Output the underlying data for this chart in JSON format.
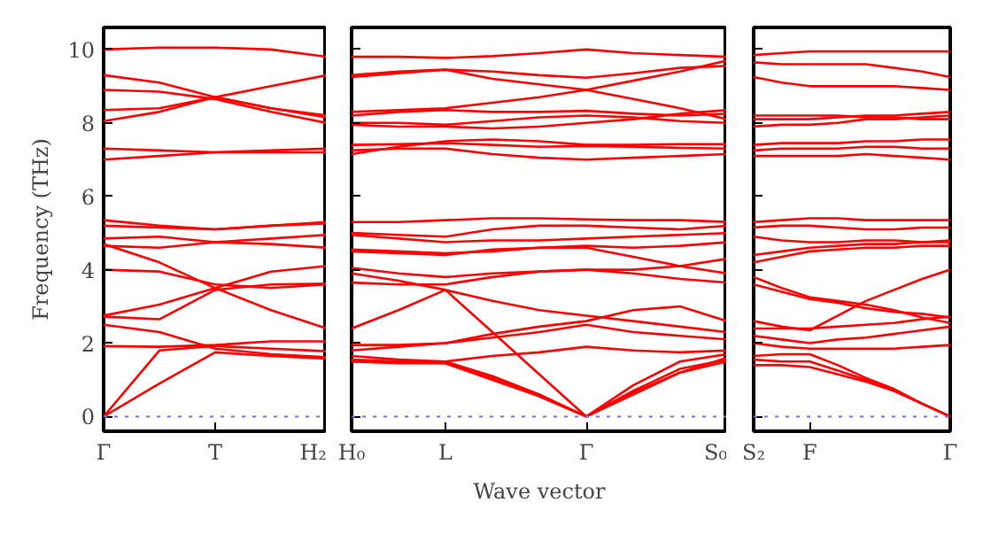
{
  "chart_data": [
    {
      "type": "line",
      "ylabel": "Frequency (THz)",
      "categories": [
        "Γ",
        null,
        "T",
        null,
        "H₂"
      ],
      "ylim": [
        -0.4,
        10.6
      ],
      "yticks": [
        0,
        2,
        4,
        6,
        8,
        10
      ],
      "grid": false,
      "line_style": "solid",
      "ref_lines": [
        {
          "axis": "y",
          "value": 0,
          "label": null,
          "color": "#7070ff",
          "line_style": "dotted"
        }
      ],
      "series": [
        {
          "color": "#ff0000",
          "values": [
            0,
            0.9,
            1.75,
            1.65,
            1.58
          ]
        },
        {
          "color": "#ff0000",
          "values": [
            0,
            1.8,
            1.92,
            1.85,
            1.78
          ]
        },
        {
          "color": "#ff0000",
          "values": [
            1.92,
            1.9,
            1.95,
            2.05,
            2.05
          ]
        },
        {
          "color": "#ff0000",
          "values": [
            2.5,
            2.3,
            1.85,
            1.7,
            1.62
          ]
        },
        {
          "color": "#ff0000",
          "values": [
            2.72,
            2.65,
            3.45,
            3.6,
            3.62
          ]
        },
        {
          "color": "#ff0000",
          "values": [
            2.75,
            3.05,
            3.5,
            3.95,
            4.1
          ]
        },
        {
          "color": "#ff0000",
          "values": [
            4.7,
            4.2,
            3.5,
            2.9,
            2.4
          ]
        },
        {
          "color": "#ff0000",
          "values": [
            4.0,
            3.95,
            3.6,
            3.5,
            3.6
          ]
        },
        {
          "color": "#ff0000",
          "values": [
            4.65,
            4.6,
            4.75,
            4.7,
            4.6
          ]
        },
        {
          "color": "#ff0000",
          "values": [
            4.85,
            4.9,
            4.75,
            4.85,
            4.95
          ]
        },
        {
          "color": "#ff0000",
          "values": [
            5.2,
            5.15,
            5.1,
            5.2,
            5.3
          ]
        },
        {
          "color": "#ff0000",
          "values": [
            5.35,
            5.2,
            5.1,
            5.2,
            5.26
          ]
        },
        {
          "color": "#ff0000",
          "values": [
            7.0,
            7.1,
            7.2,
            7.2,
            7.2
          ]
        },
        {
          "color": "#ff0000",
          "values": [
            7.3,
            7.25,
            7.2,
            7.25,
            7.3
          ]
        },
        {
          "color": "#ff0000",
          "values": [
            8.05,
            8.3,
            8.7,
            9.0,
            9.3
          ]
        },
        {
          "color": "#ff0000",
          "values": [
            8.35,
            8.4,
            8.7,
            8.4,
            8.2
          ]
        },
        {
          "color": "#ff0000",
          "values": [
            8.9,
            8.85,
            8.65,
            8.3,
            8.0
          ]
        },
        {
          "color": "#ff0000",
          "values": [
            9.3,
            9.1,
            8.7,
            8.4,
            8.15
          ]
        },
        {
          "color": "#ff0000",
          "values": [
            10.0,
            10.05,
            10.05,
            10.0,
            9.8
          ]
        }
      ]
    },
    {
      "type": "line",
      "xlabel": "Wave vector",
      "categories": [
        "H₀",
        null,
        "L",
        null,
        null,
        "Γ",
        null,
        null,
        "S₀"
      ],
      "ylim": [
        -0.4,
        10.6
      ],
      "yticks": [
        {
          "value": 0,
          "label": null
        },
        {
          "value": 2,
          "label": null
        },
        {
          "value": 4,
          "label": null
        },
        {
          "value": 6,
          "label": null
        },
        {
          "value": 8,
          "label": null
        },
        {
          "value": 10,
          "label": null
        }
      ],
      "tick_labels": "x",
      "grid": false,
      "line_style": "solid",
      "ref_lines": [
        {
          "axis": "y",
          "value": 0,
          "label": null,
          "color": "#7070ff",
          "line_style": "dotted"
        }
      ],
      "series": [
        {
          "color": "#ff0000",
          "values": [
            9.8,
            9.8,
            9.77,
            9.82,
            9.9,
            10.0,
            9.9,
            9.85,
            9.8
          ]
        },
        {
          "color": "#ff0000",
          "values": [
            9.3,
            9.4,
            9.45,
            9.4,
            9.3,
            9.23,
            9.35,
            9.5,
            9.55
          ]
        },
        {
          "color": "#ff0000",
          "values": [
            9.25,
            9.35,
            9.45,
            9.2,
            9.05,
            8.9,
            9.15,
            9.4,
            9.7
          ]
        },
        {
          "color": "#ff0000",
          "values": [
            8.3,
            8.35,
            8.4,
            8.55,
            8.7,
            8.9,
            8.65,
            8.4,
            8.1
          ]
        },
        {
          "color": "#ff0000",
          "values": [
            8.2,
            8.3,
            8.35,
            8.3,
            8.3,
            8.33,
            8.25,
            8.2,
            8.25
          ]
        },
        {
          "color": "#ff0000",
          "values": [
            8.0,
            8.0,
            7.95,
            8.05,
            8.15,
            8.2,
            8.15,
            8.05,
            8.0
          ]
        },
        {
          "color": "#ff0000",
          "values": [
            7.95,
            7.9,
            7.9,
            7.85,
            7.9,
            8.0,
            8.1,
            8.25,
            8.35
          ]
        },
        {
          "color": "#ff0000",
          "values": [
            7.4,
            7.42,
            7.45,
            7.4,
            7.35,
            7.37,
            7.35,
            7.32,
            7.3
          ]
        },
        {
          "color": "#ff0000",
          "values": [
            7.25,
            7.3,
            7.3,
            7.15,
            7.05,
            7.0,
            7.05,
            7.1,
            7.15
          ]
        },
        {
          "color": "#ff0000",
          "values": [
            7.15,
            7.35,
            7.5,
            7.55,
            7.5,
            7.4,
            7.4,
            7.42,
            7.42
          ]
        },
        {
          "color": "#ff0000",
          "values": [
            5.3,
            5.3,
            5.35,
            5.4,
            5.4,
            5.37,
            5.35,
            5.35,
            5.3
          ]
        },
        {
          "color": "#ff0000",
          "values": [
            5.0,
            4.95,
            4.9,
            5.1,
            5.2,
            5.2,
            5.15,
            5.1,
            5.2
          ]
        },
        {
          "color": "#ff0000",
          "values": [
            4.95,
            4.85,
            4.75,
            4.8,
            4.8,
            4.85,
            4.9,
            4.95,
            5.0
          ]
        },
        {
          "color": "#ff0000",
          "values": [
            4.55,
            4.5,
            4.45,
            4.5,
            4.6,
            4.65,
            4.6,
            4.65,
            4.75
          ]
        },
        {
          "color": "#ff0000",
          "values": [
            4.5,
            4.45,
            4.4,
            4.55,
            4.6,
            4.6,
            4.35,
            4.1,
            3.9
          ]
        },
        {
          "color": "#ff0000",
          "values": [
            4.05,
            3.9,
            3.8,
            3.9,
            3.95,
            4.0,
            4.0,
            4.1,
            4.3
          ]
        },
        {
          "color": "#ff0000",
          "values": [
            3.65,
            3.6,
            3.6,
            3.8,
            3.95,
            4.0,
            3.9,
            3.75,
            3.65
          ]
        },
        {
          "color": "#ff0000",
          "values": [
            2.4,
            2.9,
            3.45,
            2.3,
            1.15,
            0,
            0.6,
            1.2,
            1.6
          ]
        },
        {
          "color": "#ff0000",
          "values": [
            3.9,
            3.7,
            3.45,
            3.15,
            2.9,
            2.75,
            2.6,
            2.45,
            2.3
          ]
        },
        {
          "color": "#ff0000",
          "values": [
            1.95,
            1.95,
            2.0,
            2.25,
            2.45,
            2.6,
            2.9,
            3.0,
            2.6
          ]
        },
        {
          "color": "#ff0000",
          "values": [
            1.8,
            1.9,
            2.0,
            2.15,
            2.3,
            2.5,
            2.3,
            2.2,
            2.1
          ]
        },
        {
          "color": "#ff0000",
          "values": [
            1.65,
            1.55,
            1.5,
            1.65,
            1.75,
            1.9,
            1.8,
            1.75,
            1.8
          ]
        },
        {
          "color": "#ff0000",
          "values": [
            1.55,
            1.5,
            1.5,
            1.1,
            0.6,
            0,
            0.85,
            1.5,
            1.7
          ]
        },
        {
          "color": "#ff0000",
          "values": [
            1.5,
            1.5,
            1.45,
            1.0,
            0.55,
            0,
            0.7,
            1.3,
            1.55
          ]
        },
        {
          "color": "#ff0000",
          "values": [
            1.5,
            1.45,
            1.45,
            1.05,
            0.55,
            0,
            0.65,
            1.2,
            1.5
          ]
        }
      ]
    },
    {
      "type": "line",
      "categories": [
        "S₂",
        null,
        "F",
        null,
        null,
        null,
        null,
        "Γ"
      ],
      "ylim": [
        -0.4,
        10.6
      ],
      "yticks": [
        {
          "value": 0,
          "label": null
        },
        {
          "value": 2,
          "label": null
        },
        {
          "value": 4,
          "label": null
        },
        {
          "value": 6,
          "label": null
        },
        {
          "value": 8,
          "label": null
        },
        {
          "value": 10,
          "label": null
        }
      ],
      "tick_labels": "x",
      "grid": false,
      "line_style": "solid",
      "ref_lines": [
        {
          "axis": "y",
          "value": 0,
          "label": null,
          "color": "#7070ff",
          "line_style": "dotted"
        }
      ],
      "series": [
        {
          "color": "#ff0000",
          "values": [
            1.4,
            1.4,
            1.35,
            1.15,
            0.95,
            0.7,
            0.35,
            0
          ]
        },
        {
          "color": "#ff0000",
          "values": [
            1.55,
            1.5,
            1.5,
            1.25,
            1.0,
            0.7,
            0.35,
            0
          ]
        },
        {
          "color": "#ff0000",
          "values": [
            1.65,
            1.7,
            1.7,
            1.4,
            1.05,
            0.75,
            0.35,
            0
          ]
        },
        {
          "color": "#ff0000",
          "values": [
            2.0,
            1.9,
            1.85,
            1.85,
            1.85,
            1.85,
            1.9,
            1.95
          ]
        },
        {
          "color": "#ff0000",
          "values": [
            2.2,
            2.1,
            2.0,
            2.1,
            2.15,
            2.25,
            2.35,
            2.45
          ]
        },
        {
          "color": "#ff0000",
          "values": [
            2.4,
            2.4,
            2.4,
            2.45,
            2.5,
            2.55,
            2.65,
            2.72
          ]
        },
        {
          "color": "#ff0000",
          "values": [
            2.6,
            2.45,
            2.35,
            2.75,
            3.15,
            3.45,
            3.75,
            4.0
          ]
        },
        {
          "color": "#ff0000",
          "values": [
            3.6,
            3.4,
            3.2,
            3.1,
            2.95,
            2.85,
            2.8,
            2.7
          ]
        },
        {
          "color": "#ff0000",
          "values": [
            3.8,
            3.5,
            3.25,
            3.15,
            3.05,
            2.9,
            2.7,
            2.55
          ]
        },
        {
          "color": "#ff0000",
          "values": [
            4.2,
            4.35,
            4.5,
            4.55,
            4.6,
            4.6,
            4.65,
            4.65
          ]
        },
        {
          "color": "#ff0000",
          "values": [
            4.4,
            4.5,
            4.6,
            4.65,
            4.7,
            4.7,
            4.75,
            4.8
          ]
        },
        {
          "color": "#ff0000",
          "values": [
            4.9,
            4.8,
            4.75,
            4.75,
            4.8,
            4.8,
            4.75,
            4.75
          ]
        },
        {
          "color": "#ff0000",
          "values": [
            5.15,
            5.2,
            5.2,
            5.15,
            5.1,
            5.1,
            5.15,
            5.15
          ]
        },
        {
          "color": "#ff0000",
          "values": [
            5.3,
            5.35,
            5.4,
            5.4,
            5.35,
            5.35,
            5.35,
            5.35
          ]
        },
        {
          "color": "#ff0000",
          "values": [
            7.1,
            7.1,
            7.1,
            7.1,
            7.15,
            7.1,
            7.05,
            7.0
          ]
        },
        {
          "color": "#ff0000",
          "values": [
            7.25,
            7.3,
            7.3,
            7.3,
            7.35,
            7.35,
            7.3,
            7.3
          ]
        },
        {
          "color": "#ff0000",
          "values": [
            7.4,
            7.45,
            7.45,
            7.45,
            7.5,
            7.5,
            7.55,
            7.55
          ]
        },
        {
          "color": "#ff0000",
          "values": [
            7.9,
            7.95,
            7.95,
            8.0,
            8.1,
            8.1,
            8.15,
            8.2
          ]
        },
        {
          "color": "#ff0000",
          "values": [
            8.1,
            8.1,
            8.1,
            8.15,
            8.2,
            8.2,
            8.25,
            8.3
          ]
        },
        {
          "color": "#ff0000",
          "values": [
            8.2,
            8.2,
            8.2,
            8.2,
            8.15,
            8.15,
            8.1,
            8.1
          ]
        },
        {
          "color": "#ff0000",
          "values": [
            9.25,
            9.1,
            9.0,
            9.0,
            9.0,
            9.0,
            8.95,
            8.9
          ]
        },
        {
          "color": "#ff0000",
          "values": [
            9.65,
            9.6,
            9.6,
            9.6,
            9.6,
            9.5,
            9.4,
            9.25
          ]
        },
        {
          "color": "#ff0000",
          "values": [
            9.85,
            9.9,
            9.95,
            9.95,
            9.95,
            9.95,
            9.95,
            9.95
          ]
        }
      ]
    }
  ]
}
